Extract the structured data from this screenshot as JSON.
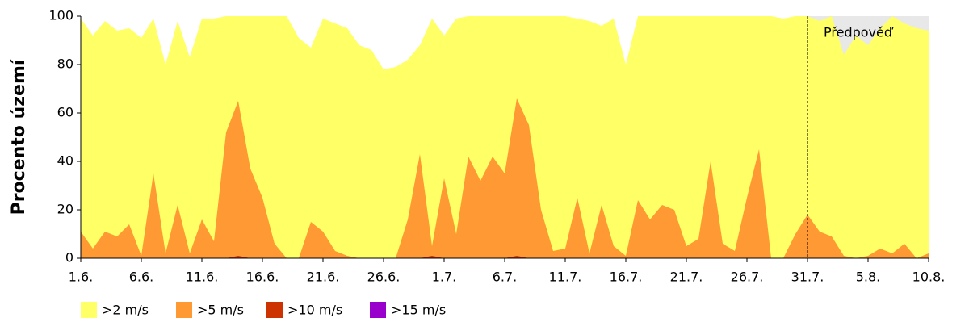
{
  "chart_data": {
    "type": "area",
    "ylabel": "Procento území",
    "categories": [
      "1.6.",
      null,
      null,
      null,
      null,
      "6.6.",
      null,
      null,
      null,
      null,
      "11.6.",
      null,
      null,
      null,
      null,
      "16.6.",
      null,
      null,
      null,
      null,
      "21.6.",
      null,
      null,
      null,
      null,
      "26.6.",
      null,
      null,
      null,
      null,
      "1.7.",
      null,
      null,
      null,
      null,
      "6.7.",
      null,
      null,
      null,
      null,
      "11.7.",
      null,
      null,
      null,
      null,
      "16.7.",
      null,
      null,
      null,
      null,
      "21.7.",
      null,
      null,
      null,
      null,
      "26.7.",
      null,
      null,
      null,
      null,
      "31.7.",
      null,
      null,
      null,
      null,
      "5.8.",
      null,
      null,
      null,
      null,
      "10.8."
    ],
    "series": [
      {
        "name": ">2 m/s",
        "color": "#ffff66",
        "values": [
          99,
          92,
          98,
          94,
          95,
          91,
          99,
          80,
          98,
          83,
          99,
          99,
          100,
          100,
          100,
          100,
          100,
          100,
          91,
          87,
          99,
          97,
          95,
          88,
          86,
          78,
          79,
          82,
          88,
          99,
          92,
          99,
          100,
          100,
          100,
          100,
          100,
          100,
          100,
          100,
          100,
          99,
          98,
          96,
          99,
          80,
          100,
          100,
          100,
          100,
          100,
          100,
          100,
          100,
          100,
          100,
          100,
          100,
          99,
          100,
          100,
          98,
          100,
          84,
          92,
          88,
          95,
          100,
          97,
          95,
          94
        ]
      },
      {
        "name": ">5 m/s",
        "color": "#ff9933",
        "values": [
          11,
          4,
          11,
          9,
          14,
          1,
          35,
          2,
          22,
          2,
          16,
          7,
          52,
          65,
          37,
          25,
          6,
          0,
          0,
          15,
          11,
          3,
          1,
          0,
          0,
          0,
          0,
          16,
          43,
          5,
          33,
          10,
          42,
          32,
          42,
          35,
          66,
          55,
          20,
          3,
          4,
          25,
          2,
          22,
          5,
          1,
          24,
          16,
          22,
          20,
          5,
          8,
          40,
          6,
          3,
          25,
          45,
          0,
          0,
          10,
          18,
          11,
          9,
          1,
          0,
          1,
          4,
          2,
          6,
          0,
          2
        ]
      },
      {
        "name": ">10 m/s",
        "color": "#cc3300",
        "values": [
          0,
          0,
          0,
          0,
          0,
          0,
          0,
          0,
          0,
          0,
          0,
          0,
          0,
          1,
          0,
          0,
          0,
          0,
          0,
          0,
          0,
          0,
          0,
          0,
          0,
          0,
          0,
          0,
          0,
          1,
          0,
          0,
          0,
          0,
          0,
          0,
          1,
          0,
          0,
          0,
          0,
          0,
          0,
          0,
          0,
          0,
          0,
          0,
          0,
          0,
          0,
          0,
          0,
          0,
          0,
          0,
          0,
          0,
          0,
          0,
          0,
          0,
          0,
          0,
          0,
          0,
          0,
          0,
          0,
          0,
          0
        ]
      },
      {
        "name": ">15 m/s",
        "color": "#9900cc",
        "values": [
          0,
          0,
          0,
          0,
          0,
          0,
          0,
          0,
          0,
          0,
          0,
          0,
          0,
          0,
          0,
          0,
          0,
          0,
          0,
          0,
          0,
          0,
          0,
          0,
          0,
          0,
          0,
          0,
          0,
          0,
          0,
          0,
          0,
          0,
          0,
          0,
          0,
          0,
          0,
          0,
          0,
          0,
          0,
          0,
          0,
          0,
          0,
          0,
          0,
          0,
          0,
          0,
          0,
          0,
          0,
          0,
          0,
          0,
          0,
          0,
          0,
          0,
          0,
          0,
          0,
          0,
          0,
          0,
          0,
          0,
          0
        ]
      }
    ],
    "annotation": {
      "text": "Předpověď",
      "x": "31.7."
    },
    "ylim": [
      0,
      100
    ],
    "yticks": [
      0,
      20,
      40,
      60,
      80,
      100
    ],
    "forecast_color": "#e8e8e8",
    "legend": "bottom-left"
  }
}
